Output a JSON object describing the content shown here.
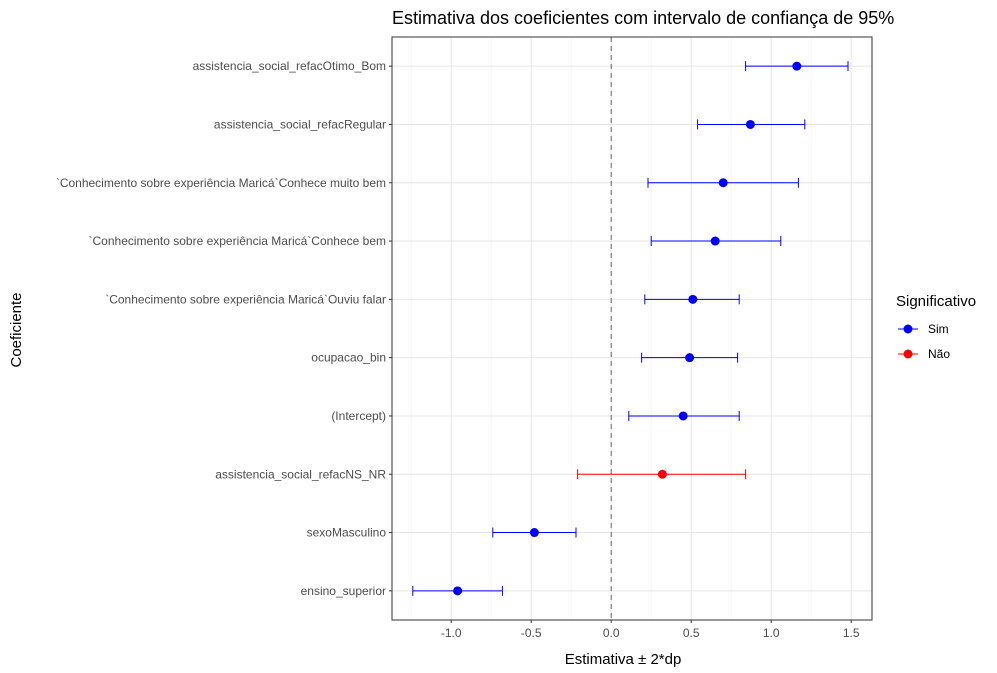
{
  "chart_data": {
    "type": "scatter",
    "subtype": "forest-plot-with-error-bars",
    "title": "Estimativa dos coeficientes com intervalo de confiança de 95%",
    "xlabel": "Estimativa ± 2*dp",
    "ylabel": "Coeficiente",
    "xlim": [
      -1.37,
      1.63
    ],
    "x_ticks": [
      "-1.0",
      "-0.5",
      "0.0",
      "0.5",
      "1.0",
      "1.5"
    ],
    "reference_line": {
      "x": 0.0,
      "style": "dashed"
    },
    "grid": true,
    "legend": {
      "title": "Significativo",
      "placement": "right",
      "entries": [
        {
          "label": "Sim",
          "color": "#0000ff"
        },
        {
          "label": "Não",
          "color": "#ff0000"
        }
      ]
    },
    "points": [
      {
        "label": "assistencia_social_refacOtimo_Bom",
        "estimate": 1.16,
        "lower": 0.84,
        "upper": 1.48,
        "significativo": "Sim"
      },
      {
        "label": "assistencia_social_refacRegular",
        "estimate": 0.87,
        "lower": 0.54,
        "upper": 1.21,
        "significativo": "Sim"
      },
      {
        "label": "`Conhecimento sobre experiência Maricá`Conhece muito bem",
        "estimate": 0.7,
        "lower": 0.23,
        "upper": 1.17,
        "significativo": "Sim"
      },
      {
        "label": "`Conhecimento sobre experiência Maricá`Conhece bem",
        "estimate": 0.65,
        "lower": 0.25,
        "upper": 1.06,
        "significativo": "Sim"
      },
      {
        "label": "`Conhecimento sobre experiência Maricá`Ouviu falar",
        "estimate": 0.51,
        "lower": 0.21,
        "upper": 0.8,
        "significativo": "Sim"
      },
      {
        "label": "ocupacao_bin",
        "estimate": 0.49,
        "lower": 0.19,
        "upper": 0.79,
        "significativo": "Sim"
      },
      {
        "label": "(Intercept)",
        "estimate": 0.45,
        "lower": 0.11,
        "upper": 0.8,
        "significativo": "Sim"
      },
      {
        "label": "assistencia_social_refacNS_NR",
        "estimate": 0.32,
        "lower": -0.21,
        "upper": 0.84,
        "significativo": "Não"
      },
      {
        "label": "sexoMasculino",
        "estimate": -0.48,
        "lower": -0.74,
        "upper": -0.22,
        "significativo": "Sim"
      },
      {
        "label": "ensino_superior",
        "estimate": -0.96,
        "lower": -1.24,
        "upper": -0.68,
        "significativo": "Sim"
      }
    ]
  }
}
